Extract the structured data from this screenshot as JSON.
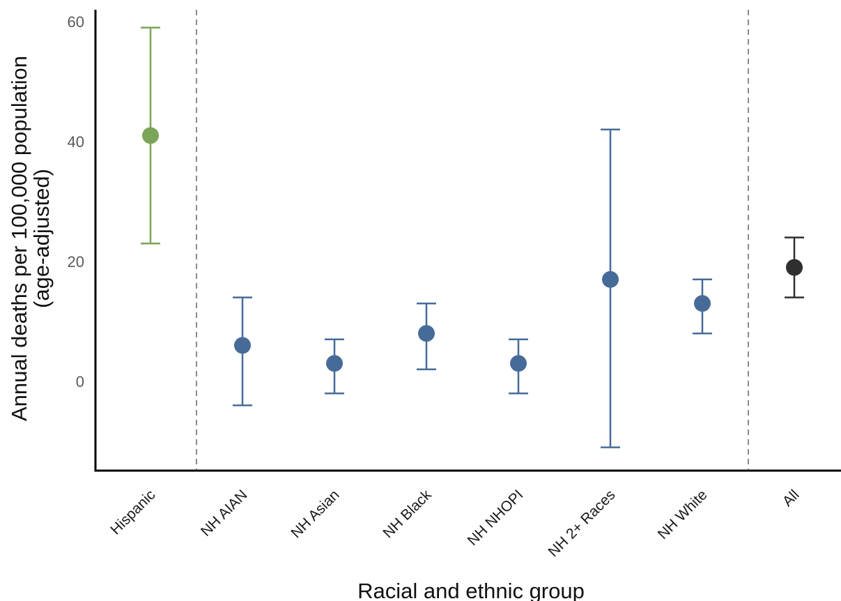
{
  "chart_data": {
    "type": "scatter",
    "subtype": "point-with-error-bars",
    "xlabel": "Racial and ethnic group",
    "ylabel_line1": "Annual deaths per 100,000 population",
    "ylabel_line2": "(age-adjusted)",
    "ylim": [
      -14,
      62
    ],
    "yticks": [
      0,
      20,
      40,
      60
    ],
    "grid": false,
    "categories": [
      "Hispanic",
      "NH AIAN",
      "NH Asian",
      "NH Black",
      "NH NHOPI",
      "NH 2+ Races",
      "NH White",
      "All"
    ],
    "points": [
      {
        "category": "Hispanic",
        "value": 41,
        "lower": 23,
        "upper": 59,
        "color": "#7aa457"
      },
      {
        "category": "NH AIAN",
        "value": 6,
        "lower": -4,
        "upper": 14,
        "color": "#476b99"
      },
      {
        "category": "NH Asian",
        "value": 3,
        "lower": -2,
        "upper": 7,
        "color": "#476b99"
      },
      {
        "category": "NH Black",
        "value": 8,
        "lower": 2,
        "upper": 13,
        "color": "#476b99"
      },
      {
        "category": "NH NHOPI",
        "value": 3,
        "lower": -2,
        "upper": 7,
        "color": "#476b99"
      },
      {
        "category": "NH 2+ Races",
        "value": 17,
        "lower": -11,
        "upper": 42,
        "color": "#476b99"
      },
      {
        "category": "NH White",
        "value": 13,
        "lower": 8,
        "upper": 17,
        "color": "#476b99"
      },
      {
        "category": "All",
        "value": 19,
        "lower": 14,
        "upper": 24,
        "color": "#2f2f2f"
      }
    ],
    "separators_after": [
      "Hispanic",
      "NH White"
    ],
    "colors": {
      "hispanic": "#7aa457",
      "nh_groups": "#476b99",
      "all": "#2f2f2f",
      "separator": "#8a8a8a",
      "axis": "#000000"
    }
  }
}
